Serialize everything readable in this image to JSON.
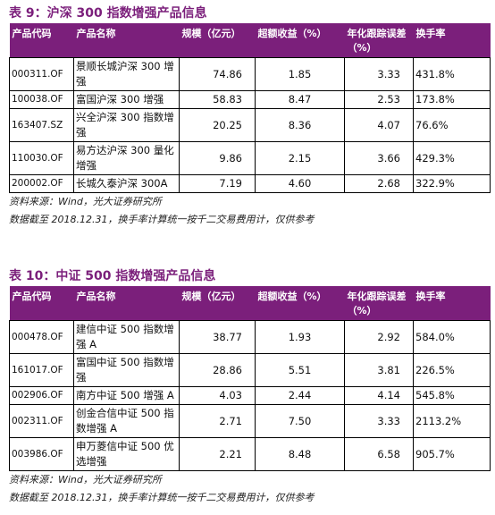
{
  "tables": [
    {
      "title": "表 9：沪深 300 指数增强产品信息",
      "header": [
        "产品代码",
        "产品名称",
        "规模（亿元）",
        "超额收益（%）",
        "年化跟踪误差（%）",
        "换手率"
      ],
      "rows": [
        [
          "000311.OF",
          "景顺长城沪深 300 增强",
          "74.86",
          "1.85",
          "3.33",
          "431.8%"
        ],
        [
          "100038.OF",
          "富国沪深 300 增强",
          "58.83",
          "8.47",
          "2.53",
          "173.8%"
        ],
        [
          "163407.SZ",
          "兴全沪深 300 指数增强",
          "20.25",
          "8.36",
          "4.07",
          "76.6%"
        ],
        [
          "110030.OF",
          "易方达沪深 300 量化增强",
          "9.86",
          "2.15",
          "3.66",
          "429.3%"
        ],
        [
          "200002.OF",
          "长城久泰沪深 300A",
          "7.19",
          "4.60",
          "2.68",
          "322.9%"
        ]
      ],
      "notes": [
        "资料来源：Wind，光大证券研究所",
        "数据截至 2018.12.31，换手率计算统一按千二交易费用计，仅供参考"
      ]
    },
    {
      "title": "表 10：中证 500 指数增强产品信息",
      "header": [
        "产品代码",
        "产品名称",
        "规模（亿元）",
        "超额收益（%）",
        "年化跟踪误差（%）",
        "换手率"
      ],
      "rows": [
        [
          "000478.OF",
          "建信中证 500 指数增强 A",
          "38.77",
          "1.93",
          "2.92",
          "584.0%"
        ],
        [
          "161017.OF",
          "富国中证 500 指数增强",
          "28.86",
          "5.51",
          "3.81",
          "226.5%"
        ],
        [
          "002906.OF",
          "南方中证 500 增强 A",
          "4.03",
          "2.44",
          "4.14",
          "545.8%"
        ],
        [
          "002311.OF",
          "创金合信中证 500 指数增强 A",
          "2.71",
          "7.50",
          "3.33",
          "2113.2%"
        ],
        [
          "003986.OF",
          "申万菱信中证 500 优选增强",
          "2.21",
          "8.48",
          "6.58",
          "905.7%"
        ]
      ],
      "notes": [
        "资料来源：Wind，光大证券研究所",
        "数据截至 2018.12.31，换手率计算统一按千二交易费用计，仅供参考"
      ]
    }
  ]
}
